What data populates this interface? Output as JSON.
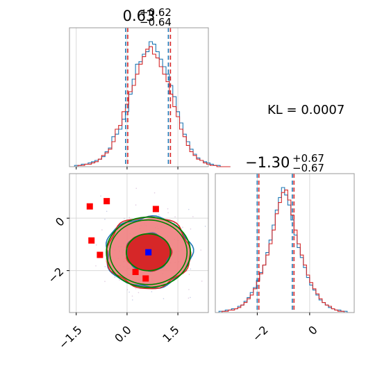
{
  "chart_data": [
    {
      "type": "histogram",
      "panel": "marginal-x",
      "title_main": "0.63",
      "title_sup": "+0.62",
      "title_sub": "−0.64",
      "xlim": [
        -1.7,
        2.4
      ],
      "bin_width": 0.1,
      "quantiles": [
        -0.01,
        0.63,
        1.25
      ],
      "series": [
        {
          "name": "",
          "color": "#1f77b4",
          "values": [
            0,
            1,
            1,
            2,
            2,
            3,
            4,
            5,
            6,
            8,
            12,
            15,
            24,
            26,
            30,
            38,
            44,
            58,
            70,
            82,
            84,
            90,
            92,
            100,
            98,
            92,
            86,
            80,
            74,
            65,
            56,
            44,
            35,
            26,
            20,
            14,
            10,
            7,
            5,
            4,
            3,
            2,
            1,
            1,
            0,
            0,
            0
          ]
        },
        {
          "name": "",
          "color": "#d62728",
          "values": [
            0,
            0,
            1,
            1,
            2,
            2,
            3,
            4,
            6,
            9,
            11,
            14,
            20,
            30,
            33,
            44,
            50,
            60,
            65,
            74,
            82,
            88,
            94,
            96,
            90,
            87,
            80,
            74,
            68,
            58,
            48,
            40,
            30,
            24,
            17,
            12,
            9,
            6,
            5,
            3,
            2,
            1,
            1,
            0,
            0,
            0,
            0
          ]
        }
      ]
    },
    {
      "type": "histogram",
      "panel": "marginal-y",
      "title_main": "−1.30",
      "title_sup": "+0.67",
      "title_sub": "−0.67",
      "xlim": [
        -3.6,
        1.7
      ],
      "quantiles": [
        -1.97,
        -1.3,
        -0.63
      ],
      "tick_labels": [
        "−2",
        "0"
      ],
      "series": [
        {
          "name": "",
          "color": "#1f77b4",
          "values": [
            0,
            1,
            1,
            2,
            2,
            3,
            3,
            5,
            6,
            9,
            12,
            16,
            20,
            26,
            32,
            38,
            48,
            58,
            70,
            82,
            92,
            100,
            94,
            86,
            74,
            62,
            52,
            44,
            36,
            28,
            22,
            18,
            14,
            10,
            8,
            6,
            4,
            3,
            2,
            2,
            1,
            1,
            0,
            0
          ]
        },
        {
          "name": "",
          "color": "#d62728",
          "values": [
            0,
            0,
            1,
            1,
            2,
            2,
            3,
            4,
            6,
            8,
            11,
            14,
            19,
            25,
            31,
            38,
            46,
            55,
            66,
            79,
            88,
            96,
            98,
            90,
            78,
            66,
            55,
            46,
            38,
            30,
            24,
            19,
            15,
            11,
            8,
            6,
            5,
            3,
            2,
            1,
            1,
            0,
            0,
            0
          ]
        }
      ]
    },
    {
      "type": "scatter",
      "panel": "joint",
      "xlim": [
        -1.7,
        2.4
      ],
      "ylim": [
        -3.6,
        1.7
      ],
      "x_tick_labels": [
        "−1.5",
        "0.0",
        "1.5"
      ],
      "y_tick_labels": [
        "0",
        "−2"
      ],
      "contour_center": [
        0.63,
        -1.3
      ],
      "contour_sigma": [
        0.62,
        0.67
      ],
      "markers_red": [
        [
          -1.1,
          0.45
        ],
        [
          -0.6,
          0.65
        ],
        [
          -1.05,
          -0.85
        ],
        [
          -0.8,
          -1.4
        ],
        [
          0.85,
          0.35
        ],
        [
          0.25,
          -2.05
        ],
        [
          0.55,
          -2.3
        ]
      ],
      "marker_blue": [
        0.63,
        -1.3
      ]
    }
  ],
  "annotation": {
    "kl_text": "KL = 0.0007"
  },
  "colors": {
    "blue": "#1f77b4",
    "red": "#d62728",
    "green": "#008000",
    "pink": "#f08080",
    "frame": "#999999",
    "grid": "#d9d9d9"
  }
}
